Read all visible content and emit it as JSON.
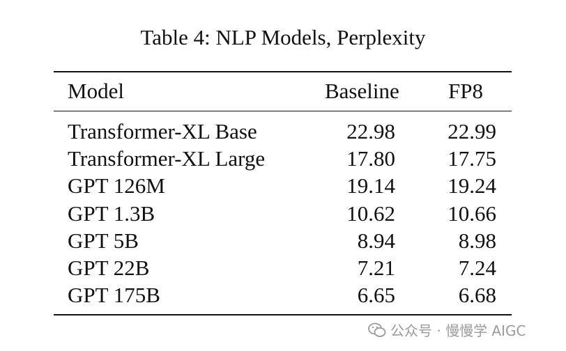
{
  "title": "Table 4: NLP Models, Perplexity",
  "columns": [
    "Model",
    "Baseline",
    "FP8"
  ],
  "rows": [
    [
      "Transformer-XL Base",
      "22.98",
      "22.99"
    ],
    [
      "Transformer-XL Large",
      "17.80",
      "17.75"
    ],
    [
      "GPT 126M",
      "19.14",
      "19.24"
    ],
    [
      "GPT 1.3B",
      "10.62",
      "10.66"
    ],
    [
      "GPT 5B",
      "8.94",
      "8.98"
    ],
    [
      "GPT 22B",
      "7.21",
      "7.24"
    ],
    [
      "GPT 175B",
      "6.65",
      "6.68"
    ]
  ],
  "watermark": {
    "text": "公众号 · 慢慢学 AIGC",
    "icon": "wechat-icon"
  }
}
